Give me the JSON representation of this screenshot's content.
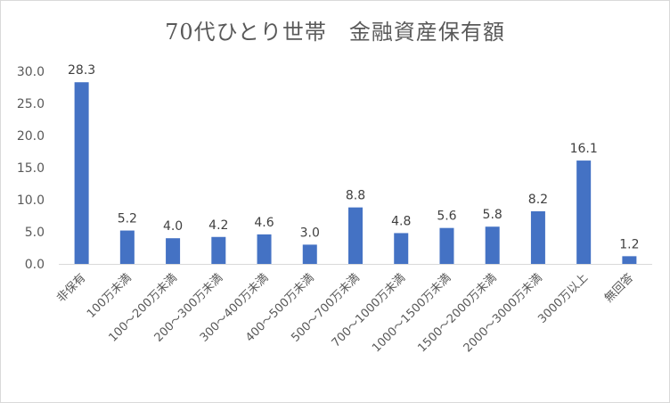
{
  "chart_data": {
    "type": "bar",
    "title": "70代ひとり世帯　金融資産保有額",
    "categories": [
      "非保有",
      "100万未満",
      "100～200万未満",
      "200～300万未満",
      "300～400万未満",
      "400～500万未満",
      "500～700万未満",
      "700～1000万未満",
      "1000～1500万未満",
      "1500～2000万未満",
      "2000～3000万未満",
      "3000万以上",
      "無回答"
    ],
    "values": [
      28.3,
      5.2,
      4.0,
      4.2,
      4.6,
      3.0,
      8.8,
      4.8,
      5.6,
      5.8,
      8.2,
      16.1,
      1.2
    ],
    "value_labels": [
      "28.3",
      "5.2",
      "4.0",
      "4.2",
      "4.6",
      "3.0",
      "8.8",
      "4.8",
      "5.6",
      "5.8",
      "8.2",
      "16.1",
      "1.2"
    ],
    "y_ticks": [
      "0.0",
      "5.0",
      "10.0",
      "15.0",
      "20.0",
      "25.0",
      "30.0"
    ],
    "ylim": [
      0,
      30
    ],
    "xlabel": "",
    "ylabel": "",
    "grid": false,
    "legend": "none",
    "bar_color": "#4472c4"
  }
}
